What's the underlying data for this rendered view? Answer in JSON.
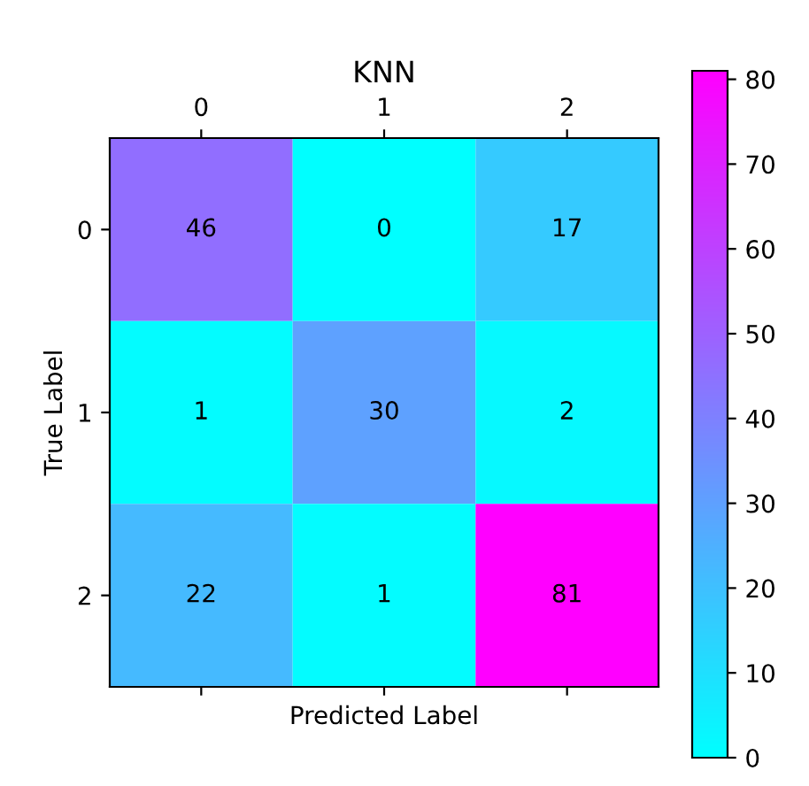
{
  "chart_data": {
    "type": "heatmap",
    "title": "KNN",
    "xlabel": "Predicted Label",
    "ylabel": "True Label",
    "categories": [
      "0",
      "1",
      "2"
    ],
    "y_categories": [
      "0",
      "1",
      "2"
    ],
    "cells": [
      [
        46,
        0,
        17
      ],
      [
        1,
        30,
        2
      ],
      [
        22,
        1,
        81
      ]
    ],
    "data_labels": true,
    "clim": [
      0,
      81
    ],
    "cticks": [
      0,
      10,
      20,
      30,
      40,
      50,
      60,
      70,
      80
    ]
  }
}
